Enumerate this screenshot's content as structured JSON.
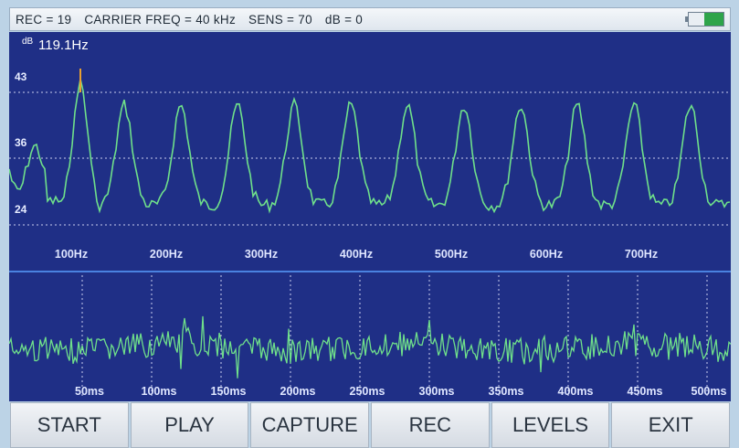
{
  "status": {
    "rec": "REC = 19",
    "carrier": "CARRIER FREQ = 40 kHz",
    "sens": "SENS = 70",
    "db": "dB = 0"
  },
  "spectrum": {
    "unit": "dB",
    "peak_label": "119.1Hz",
    "y_ticks": [
      "43",
      "36",
      "24"
    ],
    "freq_labels": [
      "100Hz",
      "200Hz",
      "300Hz",
      "400Hz",
      "500Hz",
      "600Hz",
      "700Hz"
    ]
  },
  "waveform": {
    "time_labels": [
      "50ms",
      "100ms",
      "150ms",
      "200ms",
      "250ms",
      "300ms",
      "350ms",
      "400ms",
      "450ms",
      "500ms"
    ]
  },
  "buttons": [
    "START",
    "PLAY",
    "CAPTURE",
    "REC",
    "LEVELS",
    "EXIT"
  ],
  "colors": {
    "screen_bg": "#1f2f86",
    "trace": "#6fe08a",
    "grid": "#c8ccee",
    "divider": "#4a82e0",
    "battery": "#2ea44a"
  }
}
